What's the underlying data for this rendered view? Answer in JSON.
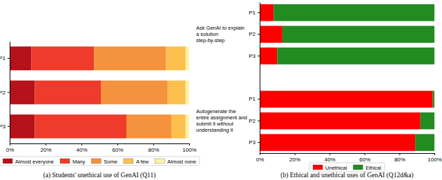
{
  "chart_data": [
    {
      "type": "bar",
      "orientation": "horizontal",
      "stacked": true,
      "title": "(a) Students' unethical use of GenAI (Q11)",
      "categories": [
        "P1",
        "P2",
        "P3"
      ],
      "series": [
        {
          "name": "Almost everyone",
          "color": "#b5121b",
          "values": [
            12,
            14,
            14
          ]
        },
        {
          "name": "Many",
          "color": "#ef3b2c",
          "values": [
            35,
            37,
            51
          ]
        },
        {
          "name": "Some",
          "color": "#f5923e",
          "values": [
            40,
            37,
            25
          ]
        },
        {
          "name": "A few",
          "color": "#fdc04f",
          "values": [
            11,
            10,
            8
          ]
        },
        {
          "name": "Almost none",
          "color": "#fff2a8",
          "values": [
            2,
            2,
            2
          ]
        }
      ],
      "xlim": [
        0,
        100
      ],
      "xticks": [
        {
          "value": 0,
          "label": "0%"
        },
        {
          "value": 20,
          "label": "20%"
        },
        {
          "value": 40,
          "label": "40%"
        },
        {
          "value": 60,
          "label": "60%"
        },
        {
          "value": 80,
          "label": "80%"
        },
        {
          "value": 100,
          "label": "100%"
        }
      ],
      "legend": "bottom"
    },
    {
      "type": "bar",
      "orientation": "horizontal",
      "stacked": true,
      "title": "(b) Ethical and unethical uses of GenAI (Q12d&a)",
      "groups": [
        {
          "label": "Ask GenAI to explain a solution step-by-step",
          "categories": [
            "P1",
            "P2",
            "P3"
          ]
        },
        {
          "label": "Autogenerate the entire assignment and submit it without understanding it",
          "categories": [
            "P1",
            "P2",
            "P3"
          ]
        }
      ],
      "series": [
        {
          "name": "Unethical",
          "color": "#ff0000",
          "values": [
            8,
            13,
            10,
            99,
            92,
            89
          ]
        },
        {
          "name": "Ethical",
          "color": "#228b22",
          "values": [
            92,
            87,
            90,
            1,
            8,
            11
          ]
        }
      ],
      "xlim": [
        0,
        100
      ],
      "xticks": [
        {
          "value": 0,
          "label": "0%"
        },
        {
          "value": 20,
          "label": "20%"
        },
        {
          "value": 40,
          "label": "40%"
        },
        {
          "value": 60,
          "label": "60%"
        },
        {
          "value": 80,
          "label": "80%"
        },
        {
          "value": 100,
          "label": "100%"
        }
      ],
      "legend": "bottom"
    }
  ]
}
